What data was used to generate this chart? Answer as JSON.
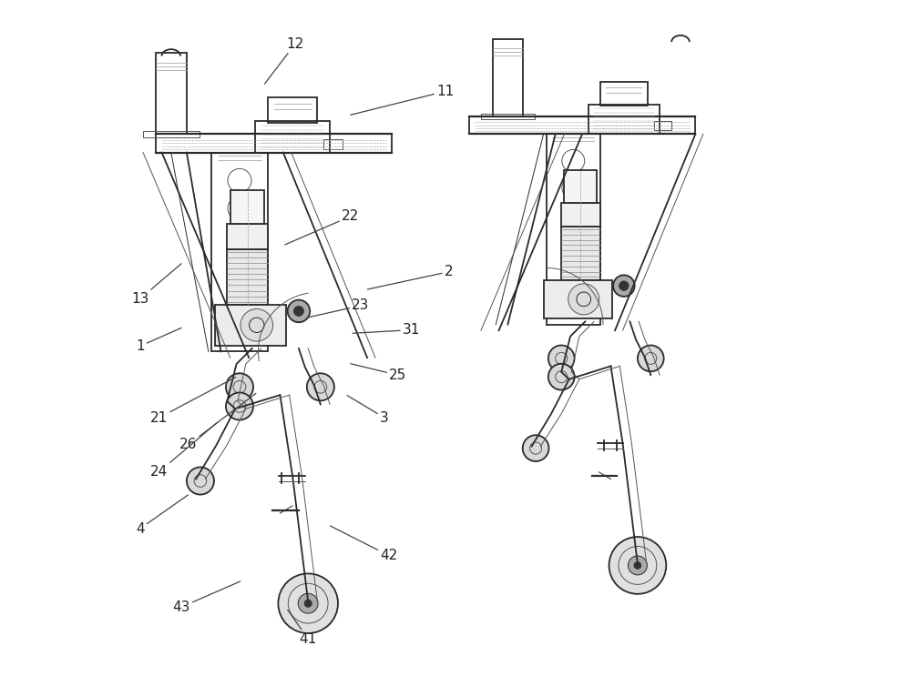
{
  "fig_width": 10.0,
  "fig_height": 7.43,
  "dpi": 100,
  "bg_color": "#ffffff",
  "lc_dark": "#2a2a2a",
  "lc_med": "#555555",
  "lc_light": "#999999",
  "ann_color": "#222222",
  "ann_fs": 11,
  "labels": {
    "12": [
      0.263,
      0.935,
      0.218,
      0.876
    ],
    "11": [
      0.485,
      0.865,
      0.345,
      0.83
    ],
    "13": [
      0.034,
      0.558,
      0.095,
      0.61
    ],
    "1": [
      0.034,
      0.488,
      0.095,
      0.515
    ],
    "22": [
      0.345,
      0.68,
      0.248,
      0.638
    ],
    "2": [
      0.49,
      0.598,
      0.37,
      0.572
    ],
    "23": [
      0.36,
      0.548,
      0.28,
      0.53
    ],
    "31": [
      0.435,
      0.512,
      0.348,
      0.507
    ],
    "25": [
      0.415,
      0.445,
      0.345,
      0.462
    ],
    "3": [
      0.395,
      0.382,
      0.34,
      0.415
    ],
    "21": [
      0.062,
      0.382,
      0.175,
      0.442
    ],
    "26": [
      0.105,
      0.342,
      0.205,
      0.418
    ],
    "24": [
      0.062,
      0.302,
      0.148,
      0.375
    ],
    "4": [
      0.034,
      0.218,
      0.105,
      0.268
    ],
    "42": [
      0.402,
      0.178,
      0.315,
      0.222
    ],
    "43": [
      0.095,
      0.102,
      0.182,
      0.14
    ],
    "41": [
      0.282,
      0.055,
      0.252,
      0.098
    ]
  }
}
